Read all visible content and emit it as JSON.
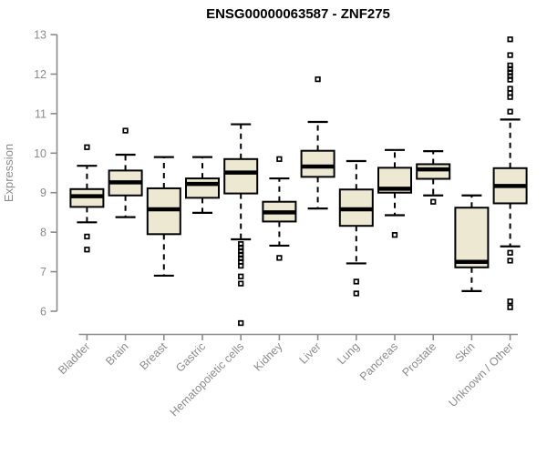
{
  "chart_data": {
    "type": "boxplot",
    "title": "ENSG00000063587 - ZNF275",
    "xlabel": "",
    "ylabel": "Expression",
    "ylim": [
      6,
      13
    ],
    "yticks": [
      6,
      7,
      8,
      9,
      10,
      11,
      12,
      13
    ],
    "grid": false,
    "legend": "none",
    "colors": {
      "box_fill": "#EDE8D1",
      "box_border": "#000000",
      "median": "#000000",
      "axis": "#8C8C8C",
      "title": "#000000"
    },
    "categories": [
      "Bladder",
      "Brain",
      "Breast",
      "Gastric",
      "Hematopoietic cells",
      "Kidney",
      "Liver",
      "Lung",
      "Pancreas",
      "Prostate",
      "Skin",
      "Unknown / Other"
    ],
    "series": [
      {
        "name": "Bladder",
        "whisker_low": 8.25,
        "q1": 8.64,
        "median": 8.91,
        "q3": 9.09,
        "whisker_high": 9.68,
        "outliers": [
          10.15,
          7.89,
          7.56
        ]
      },
      {
        "name": "Brain",
        "whisker_low": 8.38,
        "q1": 8.93,
        "median": 9.26,
        "q3": 9.56,
        "whisker_high": 9.96,
        "outliers": [
          10.57
        ]
      },
      {
        "name": "Breast",
        "whisker_low": 6.9,
        "q1": 7.95,
        "median": 8.58,
        "q3": 9.11,
        "whisker_high": 9.9,
        "outliers": []
      },
      {
        "name": "Gastric",
        "whisker_low": 8.49,
        "q1": 8.87,
        "median": 9.22,
        "q3": 9.36,
        "whisker_high": 9.9,
        "outliers": []
      },
      {
        "name": "Hematopoietic cells",
        "whisker_low": 7.82,
        "q1": 8.98,
        "median": 9.51,
        "q3": 9.85,
        "whisker_high": 10.73,
        "outliers": [
          7.7,
          7.61,
          7.52,
          7.43,
          7.34,
          7.25,
          7.15,
          6.88,
          6.7,
          5.7
        ]
      },
      {
        "name": "Kidney",
        "whisker_low": 7.66,
        "q1": 8.27,
        "median": 8.5,
        "q3": 8.77,
        "whisker_high": 9.36,
        "outliers": [
          9.85,
          7.35
        ]
      },
      {
        "name": "Liver",
        "whisker_low": 8.6,
        "q1": 9.4,
        "median": 9.66,
        "q3": 10.06,
        "whisker_high": 10.79,
        "outliers": [
          11.87
        ]
      },
      {
        "name": "Lung",
        "whisker_low": 7.21,
        "q1": 8.16,
        "median": 8.58,
        "q3": 9.08,
        "whisker_high": 9.8,
        "outliers": [
          6.75,
          6.45
        ]
      },
      {
        "name": "Pancreas",
        "whisker_low": 8.43,
        "q1": 9.0,
        "median": 9.1,
        "q3": 9.63,
        "whisker_high": 10.08,
        "outliers": [
          7.93
        ]
      },
      {
        "name": "Prostate",
        "whisker_low": 8.93,
        "q1": 9.35,
        "median": 9.59,
        "q3": 9.72,
        "whisker_high": 10.05,
        "outliers": [
          8.77
        ]
      },
      {
        "name": "Skin",
        "whisker_low": 6.51,
        "q1": 7.11,
        "median": 7.25,
        "q3": 8.62,
        "whisker_high": 8.93,
        "outliers": []
      },
      {
        "name": "Unknown / Other",
        "whisker_low": 7.64,
        "q1": 8.73,
        "median": 9.17,
        "q3": 9.62,
        "whisker_high": 10.85,
        "outliers": [
          12.88,
          12.48,
          12.22,
          12.13,
          12.04,
          11.95,
          11.86,
          11.63,
          11.52,
          11.42,
          11.05,
          7.48,
          7.28,
          6.25,
          6.1
        ]
      }
    ]
  }
}
